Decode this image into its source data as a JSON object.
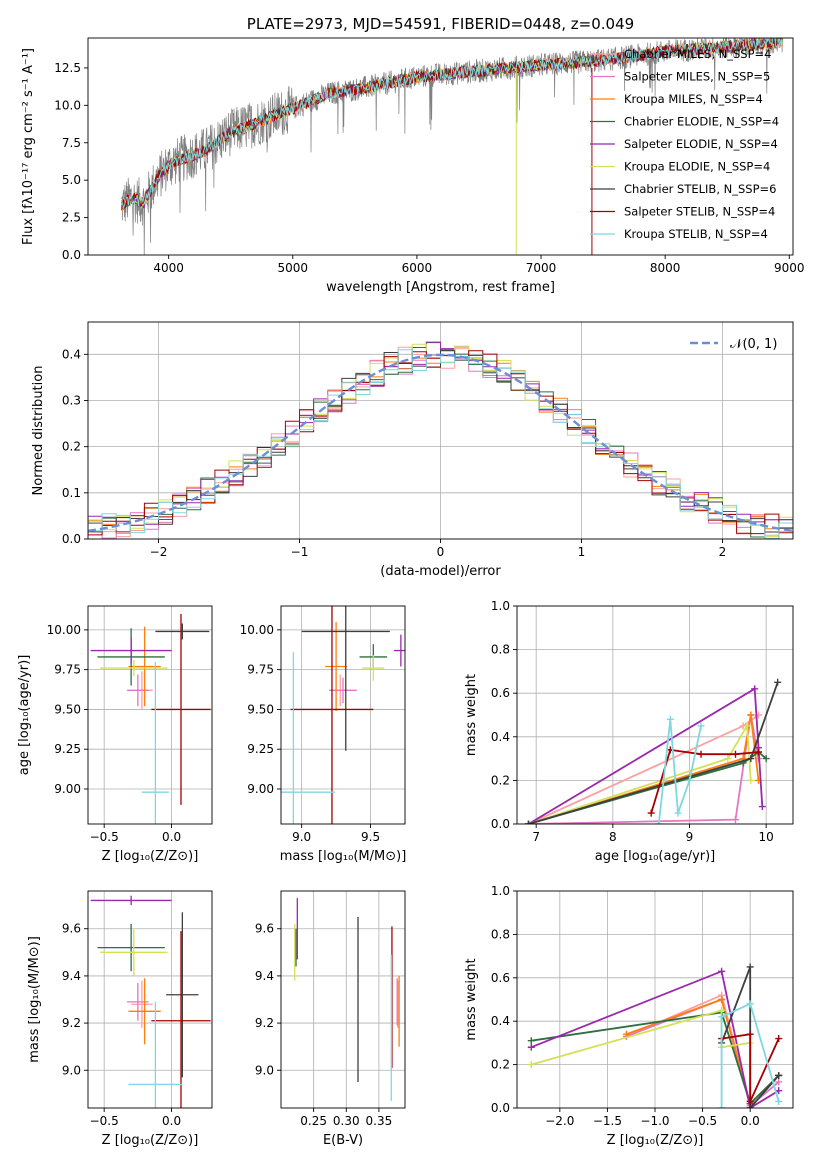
{
  "colors": [
    "#ff9f9f",
    "#e377c2",
    "#ff7f0e",
    "#2f6f3f",
    "#9b27af",
    "#d4e157",
    "#3f3f3f",
    "#a50000",
    "#7fd7e0"
  ],
  "chart_data": [
    {
      "id": "spectrum",
      "type": "line",
      "title": "PLATE=2973, MJD=54591, FIBERID=0448, z=0.049",
      "xlabel": "wavelength [Angstrom, rest frame]",
      "ylabel": "Flux [fλ10⁻¹⁷ erg cm⁻² s⁻¹ A⁻¹]",
      "xlim": [
        3350,
        9030
      ],
      "ylim": [
        0,
        14.5
      ],
      "xticks": [
        "4000",
        "5000",
        "6000",
        "7000",
        "8000",
        "9000"
      ],
      "yticks": [
        "0.0",
        "2.5",
        "5.0",
        "7.5",
        "10.0",
        "12.5"
      ],
      "xtick_values": [
        4000,
        5000,
        6000,
        7000,
        8000,
        9000
      ],
      "ytick_values": [
        0,
        2.5,
        5,
        7.5,
        10,
        12.5
      ],
      "grid": false,
      "legend_position": "top-right",
      "legend": [
        "Chabrier MILES, N_SSP=4",
        "Salpeter MILES, N_SSP=5",
        "Kroupa MILES, N_SSP=4",
        "Chabrier ELODIE, N_SSP=4",
        "Salpeter ELODIE, N_SSP=4",
        "Kroupa ELODIE, N_SSP=4",
        "Chabrier STELIB, N_SSP=6",
        "Salpeter STELIB, N_SSP=4",
        "Kroupa STELIB, N_SSP=4"
      ],
      "continuum_points": [
        [
          3600,
          3.2
        ],
        [
          3700,
          3.8
        ],
        [
          3800,
          3.5
        ],
        [
          3900,
          5.0
        ],
        [
          4000,
          6.0
        ],
        [
          4100,
          6.4
        ],
        [
          4300,
          7.0
        ],
        [
          4500,
          8.2
        ],
        [
          4700,
          8.8
        ],
        [
          5000,
          9.8
        ],
        [
          5300,
          10.8
        ],
        [
          5600,
          11.2
        ],
        [
          6000,
          11.9
        ],
        [
          6500,
          12.3
        ],
        [
          7000,
          12.7
        ],
        [
          7500,
          13.0
        ],
        [
          8000,
          13.6
        ],
        [
          8500,
          13.9
        ],
        [
          9000,
          14.3
        ]
      ]
    },
    {
      "id": "residuals",
      "type": "histogram",
      "xlabel": "(data-model)/error",
      "ylabel": "Normed distribution",
      "xlim": [
        -2.5,
        2.5
      ],
      "ylim": [
        0,
        0.47
      ],
      "xticks": [
        "−2",
        "−1",
        "0",
        "1",
        "2"
      ],
      "yticks": [
        "0.0",
        "0.1",
        "0.2",
        "0.3",
        "0.4"
      ],
      "xtick_values": [
        -2,
        -1,
        0,
        1,
        2
      ],
      "ytick_values": [
        0,
        0.1,
        0.2,
        0.3,
        0.4
      ],
      "grid": true,
      "bin_width": 0.1,
      "legend": [
        "𝒩(0, 1)"
      ],
      "legend_position": "top-right",
      "reference_curve": "gaussian mean 0 sigma 1"
    },
    {
      "id": "age_vs_Z",
      "type": "errorbar",
      "xlabel": "Z [log₁₀(Z/Z⊙)]",
      "ylabel": "age  [log₁₀(age/yr)]",
      "xlim": [
        -0.62,
        0.3
      ],
      "ylim": [
        8.78,
        10.15
      ],
      "xticks": [
        "−0.5",
        "0.0"
      ],
      "xtick_values": [
        -0.5,
        0.0
      ],
      "yticks": [
        "9.00",
        "9.25",
        "9.50",
        "9.75",
        "10.00"
      ],
      "ytick_values": [
        9.0,
        9.25,
        9.5,
        9.75,
        10.0
      ],
      "grid": true,
      "points": [
        {
          "c": 0,
          "x": -0.22,
          "y": 9.62,
          "xerr": 0.08,
          "yerr": 0.12
        },
        {
          "c": 1,
          "x": -0.25,
          "y": 9.62,
          "xerr": 0.08,
          "yerr": 0.1
        },
        {
          "c": 2,
          "x": -0.2,
          "y": 9.77,
          "xerr": 0.12,
          "yerr": 0.25
        },
        {
          "c": 3,
          "x": -0.3,
          "y": 9.83,
          "xerr": 0.25,
          "yerr": 0.18
        },
        {
          "c": 4,
          "x": -0.3,
          "y": 9.87,
          "xerr": 0.3,
          "yerr": 0.08
        },
        {
          "c": 5,
          "x": -0.28,
          "y": 9.76,
          "xerr": 0.25,
          "yerr": 0.05
        },
        {
          "c": 6,
          "x": 0.08,
          "y": 9.99,
          "xerr": 0.2,
          "yerr": 0.05
        },
        {
          "c": 7,
          "x": 0.07,
          "y": 9.5,
          "xerr": 0.22,
          "yerr": 0.6
        },
        {
          "c": 8,
          "x": -0.12,
          "y": 8.98,
          "xerr": 0.1,
          "yerr": 0.82
        }
      ]
    },
    {
      "id": "age_vs_mass",
      "type": "errorbar",
      "xlabel": "mass [log₁₀(M/M⊙)]",
      "xlim": [
        8.85,
        9.75
      ],
      "ylim": [
        8.78,
        10.15
      ],
      "xticks": [
        "9.0",
        "9.5"
      ],
      "xtick_values": [
        9.0,
        9.5
      ],
      "yticks": [
        "9.00",
        "9.25",
        "9.50",
        "9.75",
        "10.00"
      ],
      "ytick_values": [
        9.0,
        9.25,
        9.5,
        9.75,
        10.0
      ],
      "grid": true,
      "points": [
        {
          "c": 0,
          "x": 9.28,
          "y": 9.62,
          "xerr": 0.08,
          "yerr": 0.1
        },
        {
          "c": 1,
          "x": 9.3,
          "y": 9.62,
          "xerr": 0.1,
          "yerr": 0.08
        },
        {
          "c": 2,
          "x": 9.25,
          "y": 9.77,
          "xerr": 0.08,
          "yerr": 0.28
        },
        {
          "c": 3,
          "x": 9.52,
          "y": 9.83,
          "xerr": 0.1,
          "yerr": 0.08
        },
        {
          "c": 4,
          "x": 9.72,
          "y": 9.87,
          "xerr": 0.05,
          "yerr": 0.1
        },
        {
          "c": 5,
          "x": 9.52,
          "y": 9.76,
          "xerr": 0.08,
          "yerr": 0.08
        },
        {
          "c": 6,
          "x": 9.32,
          "y": 9.99,
          "xerr": 0.32,
          "yerr": 0.75
        },
        {
          "c": 7,
          "x": 9.22,
          "y": 9.5,
          "xerr": 0.3,
          "yerr": 0.72
        },
        {
          "c": 8,
          "x": 8.94,
          "y": 8.98,
          "xerr": 0.3,
          "yerr": 0.88
        }
      ]
    },
    {
      "id": "weight_vs_age",
      "type": "line",
      "xlabel": "age  [log₁₀(age/yr)]",
      "ylabel": "mass weight",
      "xlim": [
        6.75,
        10.35
      ],
      "ylim": [
        0,
        1.0
      ],
      "xticks": [
        "7",
        "8",
        "9",
        "10"
      ],
      "xtick_values": [
        7,
        8,
        9,
        10
      ],
      "yticks": [
        "0.0",
        "0.2",
        "0.4",
        "0.6",
        "0.8",
        "1.0"
      ],
      "ytick_values": [
        0,
        0.2,
        0.4,
        0.6,
        0.8,
        1.0
      ],
      "grid": true,
      "series": [
        {
          "c": 0,
          "x": [
            6.9,
            9.7,
            9.9
          ],
          "y": [
            0.0,
            0.45,
            0.5
          ]
        },
        {
          "c": 1,
          "x": [
            6.9,
            9.6,
            9.8,
            9.9
          ],
          "y": [
            0.0,
            0.02,
            0.5,
            0.3
          ]
        },
        {
          "c": 2,
          "x": [
            6.9,
            9.7,
            9.8,
            9.9
          ],
          "y": [
            0.0,
            0.3,
            0.5,
            0.2
          ]
        },
        {
          "c": 3,
          "x": [
            6.9,
            9.7,
            9.9,
            10.0
          ],
          "y": [
            0.0,
            0.28,
            0.33,
            0.3
          ]
        },
        {
          "c": 4,
          "x": [
            6.9,
            9.85,
            9.9,
            9.95
          ],
          "y": [
            0.0,
            0.62,
            0.35,
            0.08
          ]
        },
        {
          "c": 5,
          "x": [
            6.9,
            9.5,
            9.75,
            9.8
          ],
          "y": [
            0.0,
            0.3,
            0.45,
            0.2
          ]
        },
        {
          "c": 6,
          "x": [
            6.9,
            9.8,
            10.15
          ],
          "y": [
            0.0,
            0.3,
            0.65
          ]
        },
        {
          "c": 7,
          "x": [
            8.5,
            8.75,
            9.15,
            9.6,
            9.9
          ],
          "y": [
            0.05,
            0.34,
            0.32,
            0.32,
            0.33
          ]
        },
        {
          "c": 8,
          "x": [
            8.6,
            8.75,
            8.85,
            9.0,
            9.15
          ],
          "y": [
            0.0,
            0.48,
            0.05,
            0.2,
            0.45
          ]
        }
      ]
    },
    {
      "id": "mass_vs_Z",
      "type": "errorbar",
      "xlabel": "Z [log₁₀(Z/Z⊙)]",
      "ylabel": "mass [log₁₀(M/M⊙)]",
      "xlim": [
        -0.62,
        0.3
      ],
      "ylim": [
        8.84,
        9.76
      ],
      "xticks": [
        "−0.5",
        "0.0"
      ],
      "xtick_values": [
        -0.5,
        0.0
      ],
      "yticks": [
        "9.0",
        "9.2",
        "9.4",
        "9.6"
      ],
      "ytick_values": [
        9.0,
        9.2,
        9.4,
        9.6
      ],
      "grid": true,
      "points": [
        {
          "c": 0,
          "x": -0.22,
          "y": 9.28,
          "xerr": 0.08,
          "yerr": 0.1
        },
        {
          "c": 1,
          "x": -0.25,
          "y": 9.29,
          "xerr": 0.08,
          "yerr": 0.08
        },
        {
          "c": 2,
          "x": -0.2,
          "y": 9.25,
          "xerr": 0.12,
          "yerr": 0.14
        },
        {
          "c": 3,
          "x": -0.3,
          "y": 9.52,
          "xerr": 0.25,
          "yerr": 0.1
        },
        {
          "c": 4,
          "x": -0.3,
          "y": 9.72,
          "xerr": 0.3,
          "yerr": 0.02
        },
        {
          "c": 5,
          "x": -0.28,
          "y": 9.5,
          "xerr": 0.25,
          "yerr": 0.1
        },
        {
          "c": 6,
          "x": 0.08,
          "y": 9.32,
          "xerr": 0.12,
          "yerr": 0.35
        },
        {
          "c": 7,
          "x": 0.07,
          "y": 9.21,
          "xerr": 0.22,
          "yerr": 0.38
        },
        {
          "c": 8,
          "x": -0.12,
          "y": 8.94,
          "xerr": 0.2,
          "yerr": 0.35
        }
      ]
    },
    {
      "id": "mass_vs_ebv",
      "type": "errorbar",
      "xlabel": "E(B-V)",
      "xlim": [
        0.2,
        0.39
      ],
      "ylim": [
        8.84,
        9.76
      ],
      "xticks": [
        "0.25",
        "0.30",
        "0.35"
      ],
      "xtick_values": [
        0.25,
        0.3,
        0.35
      ],
      "yticks": [
        "9.0",
        "9.2",
        "9.4",
        "9.6"
      ],
      "ytick_values": [
        9.0,
        9.2,
        9.4,
        9.6
      ],
      "grid": true,
      "points": [
        {
          "c": 0,
          "x": 0.379,
          "y": 9.28,
          "xerr": 0.0,
          "yerr": 0.1
        },
        {
          "c": 1,
          "x": 0.378,
          "y": 9.29,
          "xerr": 0.0,
          "yerr": 0.1
        },
        {
          "c": 2,
          "x": 0.381,
          "y": 9.25,
          "xerr": 0.0,
          "yerr": 0.15
        },
        {
          "c": 3,
          "x": 0.223,
          "y": 9.52,
          "xerr": 0.0,
          "yerr": 0.08
        },
        {
          "c": 4,
          "x": 0.225,
          "y": 9.6,
          "xerr": 0.0,
          "yerr": 0.13
        },
        {
          "c": 5,
          "x": 0.221,
          "y": 9.5,
          "xerr": 0.0,
          "yerr": 0.12
        },
        {
          "c": 6,
          "x": 0.318,
          "y": 9.3,
          "xerr": 0.0,
          "yerr": 0.35
        },
        {
          "c": 7,
          "x": 0.37,
          "y": 9.31,
          "xerr": 0.0,
          "yerr": 0.3
        },
        {
          "c": 8,
          "x": 0.369,
          "y": 9.18,
          "xerr": 0.0,
          "yerr": 0.31
        }
      ]
    },
    {
      "id": "weight_vs_Z",
      "type": "line",
      "xlabel": "Z [log₁₀(Z/Z⊙)]",
      "ylabel": "mass weight",
      "xlim": [
        -2.45,
        0.45
      ],
      "ylim": [
        0,
        1.0
      ],
      "xticks": [
        "−2.0",
        "−1.5",
        "−1.0",
        "−0.5",
        "0.0"
      ],
      "xtick_values": [
        -2.0,
        -1.5,
        -1.0,
        -0.5,
        0.0
      ],
      "yticks": [
        "0.0",
        "0.2",
        "0.4",
        "0.6",
        "0.8",
        "1.0"
      ],
      "ytick_values": [
        0,
        0.2,
        0.4,
        0.6,
        0.8,
        1.0
      ],
      "grid": true,
      "series": [
        {
          "c": 0,
          "x": [
            -1.3,
            -0.3,
            0.0,
            0.3
          ],
          "y": [
            0.33,
            0.52,
            0.02,
            0.15
          ]
        },
        {
          "c": 1,
          "x": [
            -1.3,
            -0.3,
            0.0,
            0.3
          ],
          "y": [
            0.33,
            0.5,
            0.01,
            0.12
          ]
        },
        {
          "c": 2,
          "x": [
            -1.3,
            -0.3,
            0.0,
            0.3
          ],
          "y": [
            0.34,
            0.5,
            0.02,
            0.15
          ]
        },
        {
          "c": 3,
          "x": [
            -2.3,
            -0.3,
            0.0,
            0.3
          ],
          "y": [
            0.31,
            0.44,
            0.02,
            0.15
          ]
        },
        {
          "c": 4,
          "x": [
            -2.3,
            -0.3,
            0.0,
            0.3
          ],
          "y": [
            0.28,
            0.63,
            0.0,
            0.08
          ]
        },
        {
          "c": 5,
          "x": [
            -2.3,
            -0.3,
            -0.3,
            0.0
          ],
          "y": [
            0.2,
            0.45,
            0.28,
            0.3
          ]
        },
        {
          "c": 6,
          "x": [
            -0.3,
            0.0,
            0.0,
            0.3
          ],
          "y": [
            0.3,
            0.65,
            0.0,
            0.15
          ]
        },
        {
          "c": 7,
          "x": [
            -0.3,
            0.0,
            0.0,
            0.3
          ],
          "y": [
            0.32,
            0.34,
            0.03,
            0.32
          ]
        },
        {
          "c": 8,
          "x": [
            -0.3,
            -0.3,
            0.0,
            0.3
          ],
          "y": [
            0.0,
            0.42,
            0.48,
            0.03
          ]
        }
      ]
    }
  ]
}
